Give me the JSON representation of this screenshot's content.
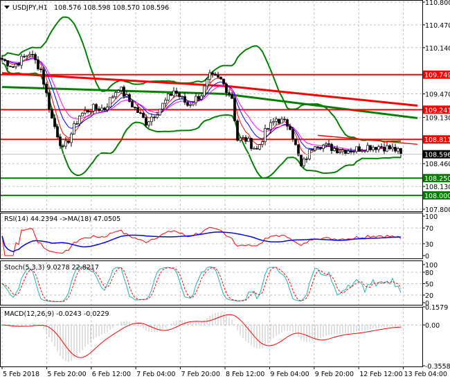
{
  "header": {
    "symbol": "USDJPY,H1",
    "ohlc": "108.576 108.598 108.570 108.596"
  },
  "colors": {
    "resistance": "#ff0000",
    "support": "#008000",
    "bollinger": "#008000",
    "current_price_bg": "#000000",
    "rsi": "#ff0000",
    "rsi_ma": "#0000ff",
    "stoch_main": "#20b2aa",
    "stoch_signal": "#ff0000",
    "macd_hist": "#c0c0c0",
    "macd_signal": "#ff0000"
  },
  "chart_data": [
    {
      "type": "candlestick",
      "panel": "main",
      "ylim": [
        107.8,
        110.8
      ],
      "y_ticks": [
        "110.800",
        "110.470",
        "110.140",
        "109.470",
        "109.130",
        "108.460",
        "108.130",
        "107.800"
      ],
      "levels": [
        {
          "value": 109.749,
          "label": "109.749",
          "color": "#ff0000"
        },
        {
          "value": 109.241,
          "label": "109.241",
          "color": "#ff0000"
        },
        {
          "value": 108.811,
          "label": "108.811",
          "color": "#ff0000"
        },
        {
          "value": 108.25,
          "label": "108.250",
          "color": "#008000"
        },
        {
          "value": 108.0,
          "label": "108.000",
          "color": "#008000"
        }
      ],
      "current_price": "108.596",
      "price": {
        "close_samples": [
          [
            0,
            109.97
          ],
          [
            4,
            109.87
          ],
          [
            10,
            110.07
          ],
          [
            14,
            109.82
          ],
          [
            18,
            109.11
          ],
          [
            22,
            108.66
          ],
          [
            24,
            108.81
          ],
          [
            28,
            109.16
          ],
          [
            32,
            109.26
          ],
          [
            37,
            109.26
          ],
          [
            42,
            109.57
          ],
          [
            47,
            109.31
          ],
          [
            52,
            109.06
          ],
          [
            57,
            109.26
          ],
          [
            62,
            109.52
          ],
          [
            67,
            109.31
          ],
          [
            72,
            109.47
          ],
          [
            75,
            109.72
          ],
          [
            79,
            109.67
          ],
          [
            83,
            109.42
          ],
          [
            85,
            108.81
          ],
          [
            88,
            108.81
          ],
          [
            92,
            108.66
          ],
          [
            95,
            108.91
          ],
          [
            99,
            109.11
          ],
          [
            104,
            109.01
          ],
          [
            108,
            108.41
          ],
          [
            110,
            108.56
          ],
          [
            113,
            108.76
          ],
          [
            117,
            108.71
          ],
          [
            122,
            108.66
          ],
          [
            127,
            108.66
          ],
          [
            132,
            108.71
          ],
          [
            137,
            108.71
          ],
          [
            142,
            108.66
          ],
          [
            144,
            108.596
          ]
        ]
      },
      "ma_slow_red": [
        [
          0,
          109.77
        ],
        [
          82,
          109.58
        ],
        [
          150,
          109.3
        ]
      ],
      "ma_slow_green": [
        [
          0,
          109.57
        ],
        [
          80,
          109.47
        ],
        [
          150,
          109.12
        ]
      ],
      "trendline_red": [
        [
          114,
          108.87
        ],
        [
          150,
          108.74
        ]
      ]
    },
    {
      "type": "line",
      "panel": "rsi",
      "title": "RSI(14) 44.2394  ->MA(18) 47.0505",
      "ylim": [
        0,
        100
      ],
      "y_ticks": [
        "100",
        "70",
        "30",
        "0"
      ]
    },
    {
      "type": "line",
      "panel": "stoch",
      "title": "Stoch(5,3,3) 9.0278 22.8217",
      "ylim": [
        0,
        100
      ],
      "y_ticks": [
        "100",
        "80",
        "50",
        "20",
        "0"
      ]
    },
    {
      "type": "bar+line",
      "panel": "macd",
      "title": "MACD(12,26,9) -0.0243 -0.0229",
      "ylim": [
        -0.3558,
        0.1579
      ],
      "y_ticks": [
        "0.1579",
        "0.00",
        "-0.3558"
      ]
    }
  ],
  "x_axis": {
    "labels": [
      "5 Feb 2018",
      "5 Feb 20:00",
      "6 Feb 12:00",
      "7 Feb 04:00",
      "7 Feb 20:00",
      "8 Feb 12:00",
      "9 Feb 04:00",
      "9 Feb 20:00",
      "12 Feb 12:00",
      "13 Feb 04:00"
    ]
  }
}
